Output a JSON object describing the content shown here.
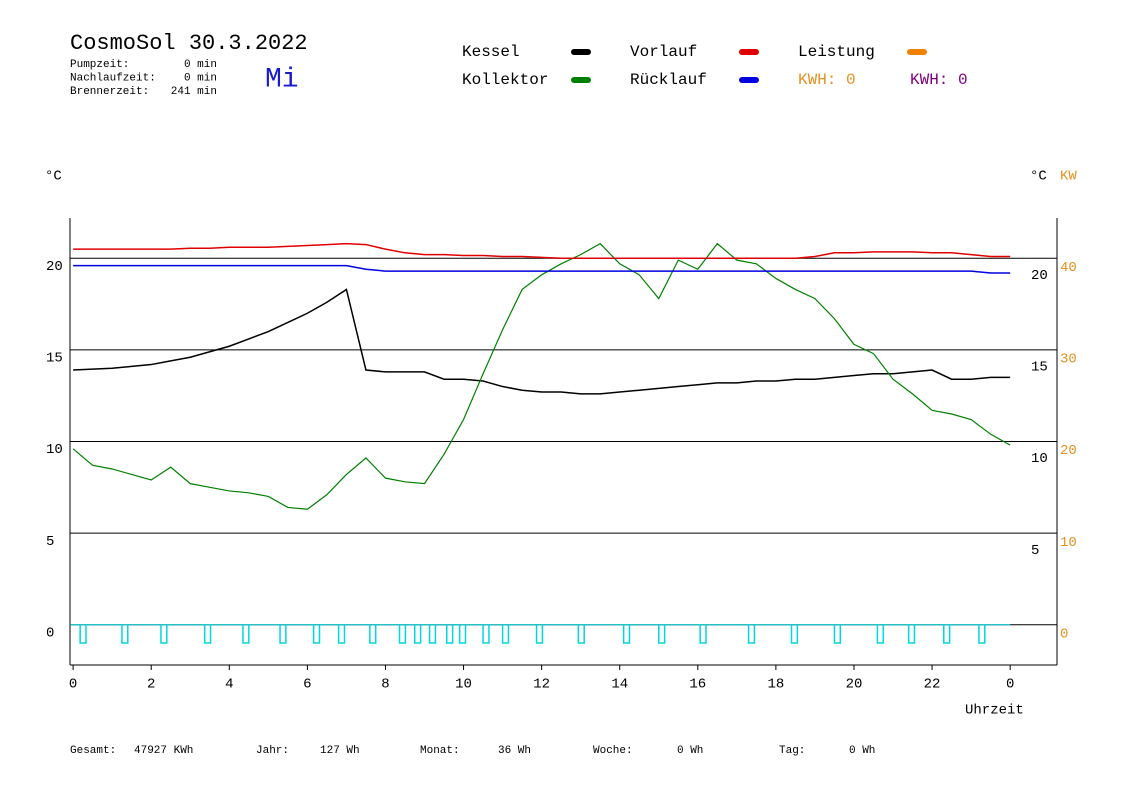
{
  "chart_data": {
    "type": "line",
    "title": "CosmoSol 30.3.2022",
    "weekday": "Mi",
    "info": [
      [
        "Pumpzeit:",
        "0 min"
      ],
      [
        "Nachlaufzeit:",
        "0 min"
      ],
      [
        "Brennerzeit:",
        "241 min"
      ]
    ],
    "y_label": "°C",
    "y2_label": "°C",
    "y3_label": "KW",
    "x_label": "Uhrzeit",
    "x": [
      0,
      0.5,
      1,
      1.5,
      2,
      2.5,
      3,
      3.5,
      4,
      4.5,
      5,
      5.5,
      6,
      6.5,
      7,
      7.5,
      8,
      8.5,
      9,
      9.5,
      10,
      10.5,
      11,
      11.5,
      12,
      12.5,
      13,
      13.5,
      14,
      14.5,
      15,
      15.5,
      16,
      16.5,
      17,
      17.5,
      18,
      18.5,
      19,
      19.5,
      20,
      20.5,
      21,
      21.5,
      22,
      22.5,
      23,
      23.5,
      24
    ],
    "series": [
      {
        "name": "Kessel",
        "color": "#000000",
        "values": [
          13.9,
          13.95,
          14.0,
          14.1,
          14.2,
          14.4,
          14.6,
          14.9,
          15.2,
          15.6,
          16.0,
          16.5,
          17.0,
          17.6,
          18.3,
          13.9,
          13.8,
          13.8,
          13.8,
          13.4,
          13.4,
          13.3,
          13.0,
          12.8,
          12.7,
          12.7,
          12.6,
          12.6,
          12.7,
          12.8,
          12.9,
          13.0,
          13.1,
          13.2,
          13.2,
          13.3,
          13.3,
          13.4,
          13.4,
          13.5,
          13.6,
          13.7,
          13.7,
          13.8,
          13.9,
          13.4,
          13.4,
          13.5,
          13.5
        ]
      },
      {
        "name": "Kollektor",
        "color": "#008000",
        "values": [
          9.6,
          8.7,
          8.5,
          8.2,
          7.9,
          8.6,
          7.7,
          7.5,
          7.3,
          7.2,
          7.0,
          6.4,
          6.3,
          7.1,
          8.2,
          9.1,
          8.0,
          7.8,
          7.7,
          9.3,
          11.2,
          13.7,
          16.1,
          18.3,
          19.1,
          19.7,
          20.2,
          20.8,
          19.7,
          19.1,
          17.8,
          19.9,
          19.4,
          20.8,
          19.9,
          19.7,
          18.9,
          18.3,
          17.8,
          16.7,
          15.3,
          14.8,
          13.4,
          12.6,
          11.7,
          11.5,
          11.2,
          10.4,
          9.8
        ]
      },
      {
        "name": "Vorlauf",
        "color": "#e00000",
        "values": [
          20.5,
          20.5,
          20.5,
          20.5,
          20.5,
          20.5,
          20.55,
          20.55,
          20.6,
          20.6,
          20.6,
          20.65,
          20.7,
          20.75,
          20.8,
          20.75,
          20.5,
          20.3,
          20.2,
          20.2,
          20.15,
          20.15,
          20.1,
          20.1,
          20.05,
          20.0,
          20.0,
          20.0,
          20.0,
          20.0,
          20.0,
          20.0,
          20.0,
          20.0,
          20.0,
          20.0,
          20.0,
          20.0,
          20.1,
          20.3,
          20.3,
          20.35,
          20.35,
          20.35,
          20.3,
          20.3,
          20.2,
          20.1,
          20.1
        ]
      },
      {
        "name": "Rücklauf",
        "color": "#0000e0",
        "values": [
          19.6,
          19.6,
          19.6,
          19.6,
          19.6,
          19.6,
          19.6,
          19.6,
          19.6,
          19.6,
          19.6,
          19.6,
          19.6,
          19.6,
          19.6,
          19.4,
          19.3,
          19.3,
          19.3,
          19.3,
          19.3,
          19.3,
          19.3,
          19.3,
          19.3,
          19.3,
          19.3,
          19.3,
          19.3,
          19.3,
          19.3,
          19.3,
          19.3,
          19.3,
          19.3,
          19.3,
          19.3,
          19.3,
          19.3,
          19.3,
          19.3,
          19.3,
          19.3,
          19.3,
          19.3,
          19.3,
          19.3,
          19.2,
          19.2
        ]
      },
      {
        "name": "Leistung",
        "color": "#f08000"
      }
    ],
    "pump": {
      "color": "#00d8e0",
      "x": [
        0.18,
        1.25,
        2.25,
        3.37,
        4.35,
        5.3,
        6.16,
        6.8,
        7.6,
        8.36,
        8.75,
        9.13,
        9.57,
        9.9,
        10.5,
        11.0,
        11.87,
        12.94,
        14.1,
        15.0,
        16.06,
        17.3,
        18.4,
        19.5,
        20.6,
        21.4,
        22.3,
        23.2
      ],
      "values": [
        -1,
        -1,
        -1,
        -1,
        -1,
        -1,
        -1,
        -1,
        -1,
        -1,
        -1,
        -1,
        -1,
        -1,
        -1,
        -1,
        -1,
        -1,
        -1,
        -1,
        -1,
        -1,
        -1,
        -1,
        -1,
        -1,
        -1,
        -1
      ]
    },
    "kwh_labels": [
      {
        "text": "KWH: 0",
        "color": "#e89020"
      },
      {
        "text": "KWH: 0",
        "color": "#800080"
      }
    ],
    "xlim": [
      -0.08,
      25.2
    ],
    "xticks": [
      0,
      2,
      4,
      6,
      8,
      10,
      12,
      14,
      16,
      18,
      20,
      22,
      {
        "value": 24,
        "label": "0"
      }
    ],
    "ylim": [
      -2.2,
      22.2
    ],
    "yticks": [
      0,
      5,
      10,
      15,
      20
    ],
    "y2ticks": [
      5,
      10,
      15,
      20
    ],
    "y3lim": [
      -4.4,
      44.4
    ],
    "y3ticks": [
      0,
      10,
      20,
      30,
      40
    ],
    "y3color": "#e89020",
    "grid": true,
    "footer": [
      [
        "Gesamt:",
        "47927 KWh"
      ],
      [
        "Jahr:",
        "127 Wh"
      ],
      [
        "Monat:",
        "36 Wh"
      ],
      [
        "Woche:",
        "0 Wh"
      ],
      [
        "Tag:",
        "0 Wh"
      ]
    ]
  }
}
